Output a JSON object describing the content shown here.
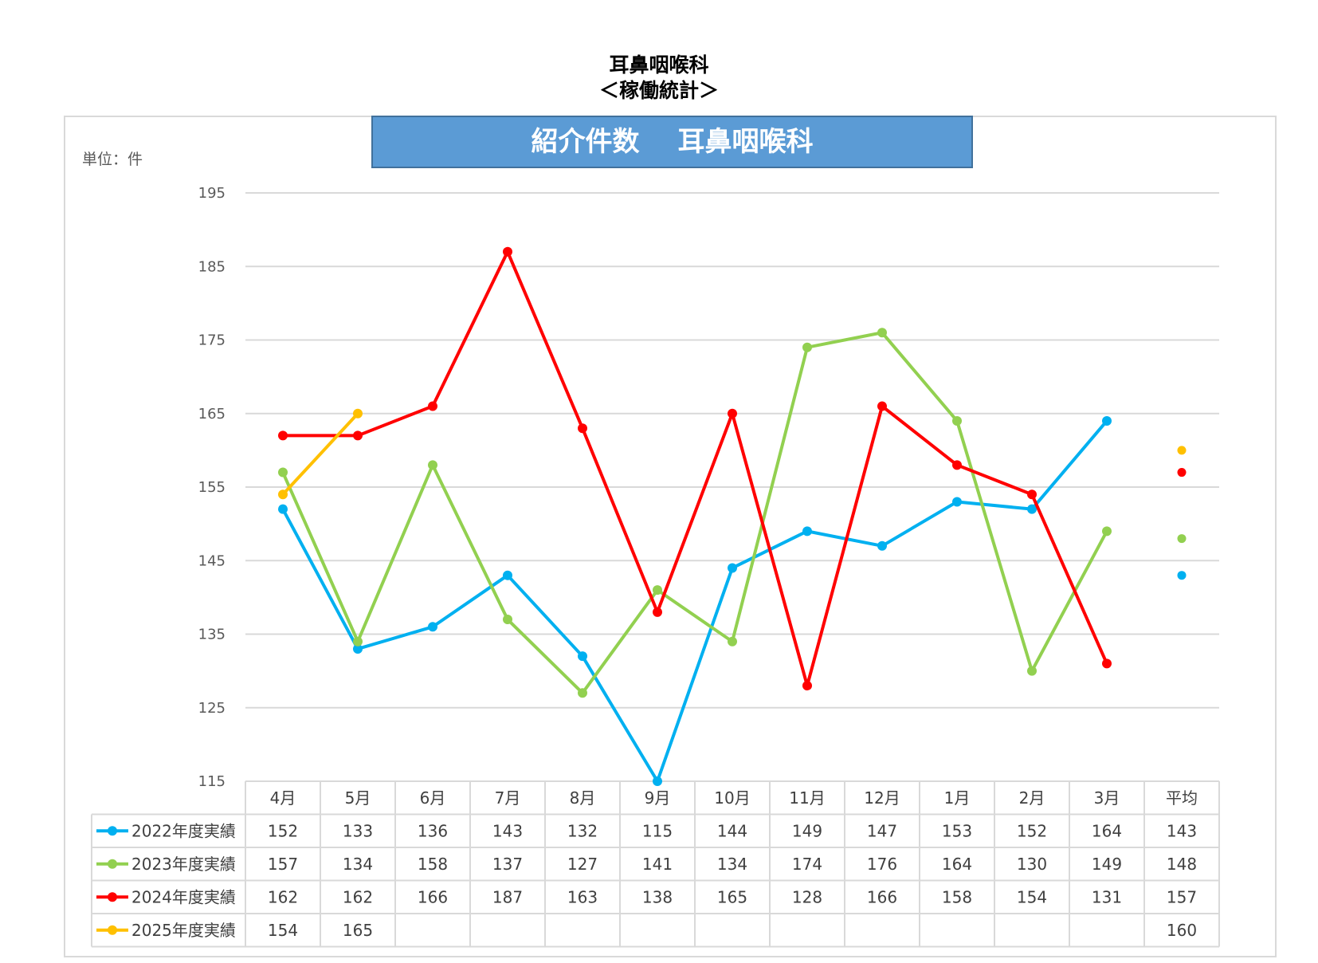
{
  "page": {
    "title_line1": "耳鼻咽喉科",
    "title_line2": "＜稼働統計＞"
  },
  "banner": {
    "left": "紹介件数",
    "right": "耳鼻咽喉科"
  },
  "unit_label": "単位：件",
  "chart_data": {
    "type": "line",
    "title": "紹介件数　耳鼻咽喉科",
    "ylabel": "単位：件",
    "ylim": [
      115,
      195
    ],
    "yticks": [
      115,
      125,
      135,
      145,
      155,
      165,
      175,
      185,
      195
    ],
    "grid": true,
    "categories": [
      "4月",
      "5月",
      "6月",
      "7月",
      "8月",
      "9月",
      "10月",
      "11月",
      "12月",
      "1月",
      "2月",
      "3月"
    ],
    "average_label": "平均",
    "series": [
      {
        "name": "2022年度実績",
        "color": "#00b0f0",
        "values": [
          152,
          133,
          136,
          143,
          132,
          115,
          144,
          149,
          147,
          153,
          152,
          164
        ],
        "average": 143
      },
      {
        "name": "2023年度実績",
        "color": "#92d050",
        "values": [
          157,
          134,
          158,
          137,
          127,
          141,
          134,
          174,
          176,
          164,
          130,
          149
        ],
        "average": 148
      },
      {
        "name": "2024年度実績",
        "color": "#ff0000",
        "values": [
          162,
          162,
          166,
          187,
          163,
          138,
          165,
          128,
          166,
          158,
          154,
          131
        ],
        "average": 157
      },
      {
        "name": "2025年度実績",
        "color": "#ffc000",
        "values": [
          154,
          165,
          null,
          null,
          null,
          null,
          null,
          null,
          null,
          null,
          null,
          null
        ],
        "average": 160
      }
    ]
  }
}
